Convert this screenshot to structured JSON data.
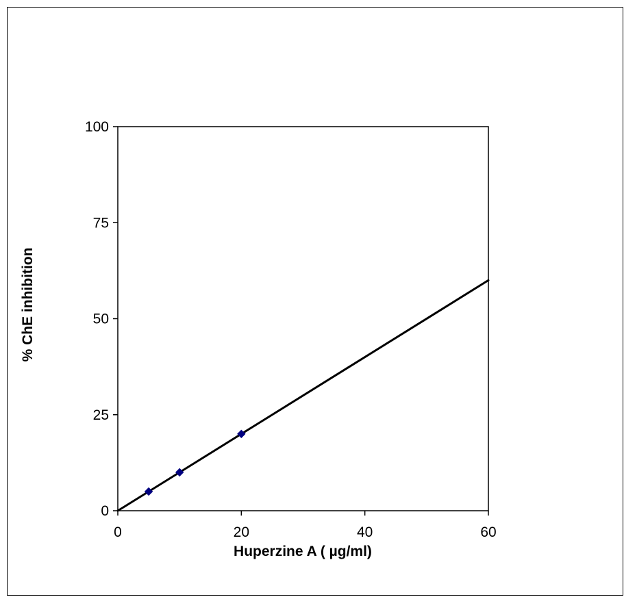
{
  "chart_data": {
    "type": "scatter",
    "title": "",
    "xlabel": "Huperzine A ( µg/ml)",
    "ylabel": "% ChE inhibition",
    "xlim": [
      0,
      60
    ],
    "ylim": [
      0,
      100
    ],
    "x_ticks": [
      "0",
      "20",
      "40",
      "60"
    ],
    "y_ticks": [
      "0",
      "25",
      "50",
      "75",
      "100"
    ],
    "x_tick_values": [
      0,
      20,
      40,
      60
    ],
    "y_tick_values": [
      0,
      25,
      50,
      75,
      100
    ],
    "grid": false,
    "legend": "none",
    "series": [
      {
        "marker": "diamond",
        "color": "#000080",
        "points": [
          {
            "x": 5,
            "y": 5
          },
          {
            "x": 10,
            "y": 10
          },
          {
            "x": 20,
            "y": 20
          }
        ]
      }
    ],
    "trendline": {
      "color": "#000000",
      "from": {
        "x": 0,
        "y": 0
      },
      "to": {
        "x": 60,
        "y": 60
      }
    }
  }
}
